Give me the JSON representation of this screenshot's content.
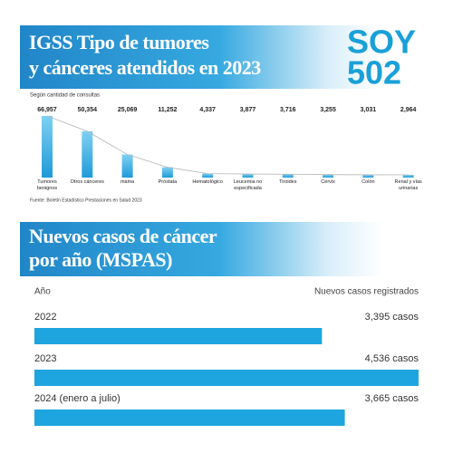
{
  "logo": {
    "line1": "SOY",
    "line2": "502"
  },
  "chart_data": [
    {
      "type": "bar",
      "title": "IGSS Tipo de tumores y cánceres atendidos en 2023",
      "subtitle": "Según cantidad de consultas",
      "source": "Fuente: Boletín Estadístico Prestaciones en Salud 2023",
      "categories": [
        "Tumores benignos",
        "Otros cánceres",
        "mama",
        "Próstata",
        "Hematológico",
        "Leucemia no especificada",
        "Tiroides",
        "Cérvix",
        "Colón",
        "Renal y vías urinarias"
      ],
      "values": [
        66957,
        50354,
        25069,
        11252,
        4337,
        3877,
        3716,
        3255,
        3031,
        2964
      ],
      "value_labels": [
        "66,957",
        "50,354",
        "25,069",
        "11,252",
        "4,337",
        "3,877",
        "3,716",
        "3,255",
        "3,031",
        "2,964"
      ],
      "color": "#2aa3dd",
      "line_color": "#b5b5b5"
    },
    {
      "type": "hbar",
      "title": "Nuevos casos de cáncer por año (MSPAS)",
      "x_label": "Año",
      "y_label": "Nuevos casos registrados",
      "categories": [
        "2022",
        "2023",
        "2024 (enero a julio)"
      ],
      "values": [
        3395,
        4536,
        3665
      ],
      "value_labels": [
        "3,395 casos",
        "4,536 casos",
        "3,665 casos"
      ],
      "color": "#1ea5df"
    }
  ]
}
